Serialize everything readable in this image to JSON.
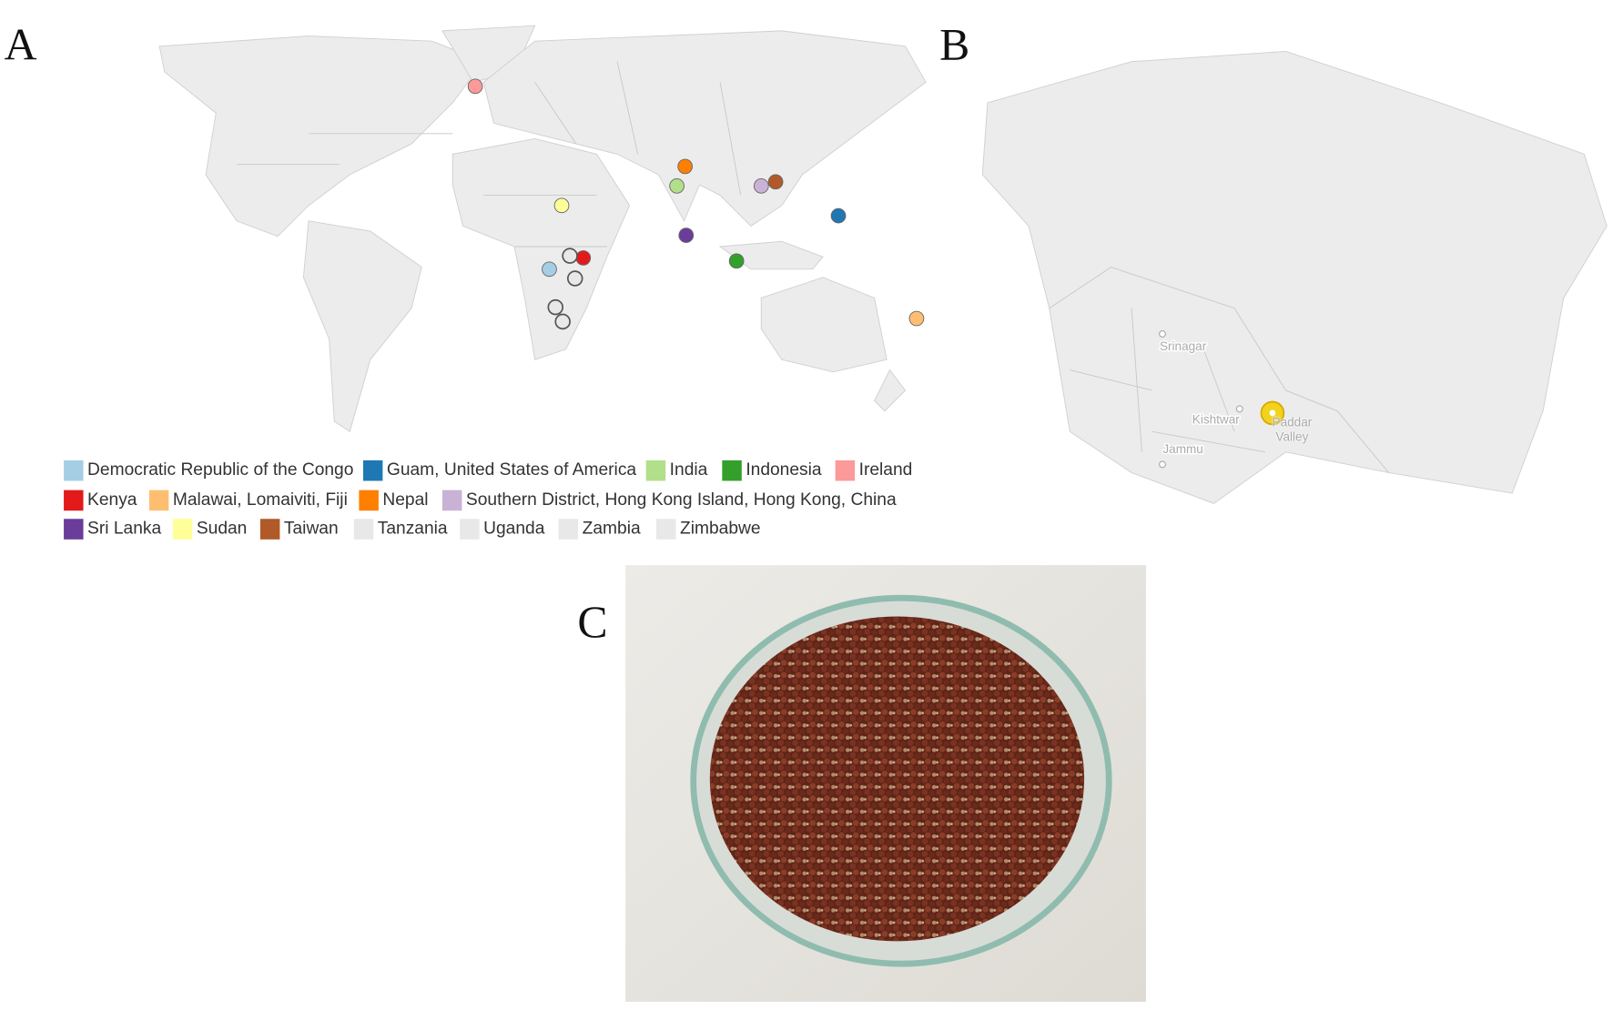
{
  "panel_labels": [
    "A",
    "B",
    "C"
  ],
  "legend": [
    {
      "name": "Democratic Republic of the Congo",
      "color": "#a6cee3"
    },
    {
      "name": "Guam, United States of America",
      "color": "#1f78b4"
    },
    {
      "name": "India",
      "color": "#b2df8a"
    },
    {
      "name": "Indonesia",
      "color": "#33a02c"
    },
    {
      "name": "Ireland",
      "color": "#fb9a99"
    },
    {
      "name": "Kenya",
      "color": "#e31a1c"
    },
    {
      "name": "Malawai, Lomaiviti, Fiji",
      "color": "#fdbf6f"
    },
    {
      "name": "Nepal",
      "color": "#ff7f00"
    },
    {
      "name": "Southern District, Hong Kong Island, Hong Kong, China",
      "color": "#cab2d6"
    },
    {
      "name": "Sri Lanka",
      "color": "#6a3d9a"
    },
    {
      "name": "Sudan",
      "color": "#ffff99"
    },
    {
      "name": "Taiwan",
      "color": "#b15928"
    },
    {
      "name": "Tanzania",
      "color": "#e8e8e8"
    },
    {
      "name": "Uganda",
      "color": "#e8e8e8"
    },
    {
      "name": "Zambia",
      "color": "#e8e8e8"
    },
    {
      "name": "Zimbabwe",
      "color": "#e8e8e8"
    }
  ],
  "map_b_labels": [
    "Srinagar",
    "Kishtwar",
    "Jammu",
    "Paddar Valley"
  ]
}
